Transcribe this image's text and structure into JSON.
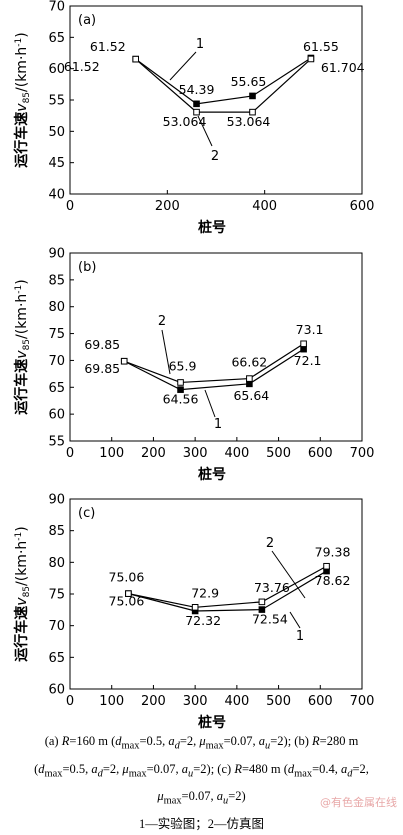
{
  "chart_data": [
    {
      "type": "line",
      "panel_label": "(a)",
      "xlabel": "桩号",
      "ylabel": "运行车速v85/(km·h-1)",
      "ylabel_parts": {
        "main": "运行车速",
        "v": "v",
        "sub": "85",
        "unit": "/(km·h",
        "sup": "-1",
        "close": ")"
      },
      "xlim": [
        0,
        600
      ],
      "ylim": [
        40,
        70
      ],
      "xticks": [
        0,
        200,
        400,
        600
      ],
      "yticks": [
        40,
        45,
        50,
        55,
        60,
        65,
        70
      ],
      "series": [
        {
          "name": "1",
          "marker": "filled",
          "x": [
            135,
            260,
            375,
            495
          ],
          "y": [
            61.52,
            54.39,
            55.65,
            61.704
          ]
        },
        {
          "name": "2",
          "marker": "open",
          "x": [
            135,
            260,
            375,
            495
          ],
          "y": [
            61.52,
            53.064,
            53.064,
            61.55
          ]
        }
      ],
      "data_labels": [
        "61.52",
        "61.52",
        "54.39",
        "55.65",
        "61.55",
        "61.704",
        "53.064",
        "53.064"
      ],
      "series_labels": [
        "1",
        "2"
      ]
    },
    {
      "type": "line",
      "panel_label": "(b)",
      "xlabel": "桩号",
      "ylabel": "运行车速v85/(km·h-1)",
      "ylabel_parts": {
        "main": "运行车速",
        "v": "v",
        "sub": "85",
        "unit": "/(km·h",
        "sup": "-1",
        "close": ")"
      },
      "xlim": [
        0,
        700
      ],
      "ylim": [
        55,
        90
      ],
      "xticks": [
        0,
        100,
        200,
        300,
        400,
        500,
        600,
        700
      ],
      "yticks": [
        55,
        60,
        65,
        70,
        75,
        80,
        85,
        90
      ],
      "series": [
        {
          "name": "1",
          "marker": "filled",
          "x": [
            130,
            265,
            430,
            560
          ],
          "y": [
            69.85,
            64.56,
            65.64,
            72.1
          ]
        },
        {
          "name": "2",
          "marker": "open",
          "x": [
            130,
            265,
            430,
            560
          ],
          "y": [
            69.85,
            65.9,
            66.62,
            73.1
          ]
        }
      ],
      "data_labels": [
        "69.85",
        "69.85",
        "65.9",
        "64.56",
        "66.62",
        "65.64",
        "73.1",
        "72.1"
      ],
      "series_labels": [
        "2",
        "1"
      ]
    },
    {
      "type": "line",
      "panel_label": "(c)",
      "xlabel": "桩号",
      "ylabel": "运行车速v85/(km·h-1)",
      "ylabel_parts": {
        "main": "运行车速",
        "v": "v",
        "sub": "85",
        "unit": "/(km·h",
        "sup": "-1",
        "close": ")"
      },
      "xlim": [
        0,
        700
      ],
      "ylim": [
        60,
        90
      ],
      "xticks": [
        0,
        100,
        200,
        300,
        400,
        500,
        600,
        700
      ],
      "yticks": [
        60,
        65,
        70,
        75,
        80,
        85,
        90
      ],
      "series": [
        {
          "name": "1",
          "marker": "filled",
          "x": [
            140,
            300,
            460,
            615
          ],
          "y": [
            75.06,
            72.32,
            72.54,
            78.62
          ]
        },
        {
          "name": "2",
          "marker": "open",
          "x": [
            140,
            300,
            460,
            615
          ],
          "y": [
            75.06,
            72.9,
            73.76,
            79.38
          ]
        }
      ],
      "data_labels": [
        "75.06",
        "75.06",
        "72.9",
        "72.32",
        "73.76",
        "72.54",
        "79.38",
        "78.62"
      ],
      "series_labels": [
        "2",
        "1"
      ]
    }
  ],
  "caption": {
    "line1": "(a) R=160 m (dmax=0.5, ad=2, μmax=0.07, au=2); (b) R=280 m",
    "line2": "(dmax=0.5, ad=2, μmax=0.07, au=2); (c) R=480 m (dmax=0.4, ad=2,",
    "line3": "μmax=0.07, au=2)",
    "legend_line": "1—实验图；2—仿真图"
  },
  "watermark": "@有色金属在线"
}
